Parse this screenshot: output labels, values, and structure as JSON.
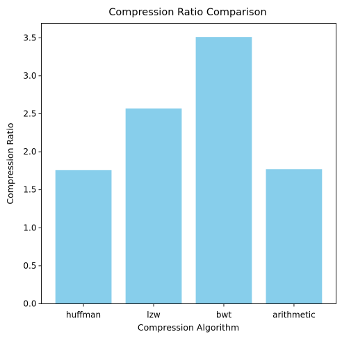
{
  "chart_data": {
    "type": "bar",
    "title": "Compression Ratio Comparison",
    "xlabel": "Compression Algorithm",
    "ylabel": "Compression Ratio",
    "categories": [
      "huffman",
      "lzw",
      "bwt",
      "arithmetic"
    ],
    "values": [
      1.76,
      2.57,
      3.51,
      1.77
    ],
    "ylim": [
      0,
      3.69
    ],
    "yticks": [
      0.0,
      0.5,
      1.0,
      1.5,
      2.0,
      2.5,
      3.0,
      3.5
    ],
    "ytick_labels": [
      "0.0",
      "0.5",
      "1.0",
      "1.5",
      "2.0",
      "2.5",
      "3.0",
      "3.5"
    ],
    "bar_color": "#87ceeb",
    "grid": false,
    "legend": "none"
  }
}
